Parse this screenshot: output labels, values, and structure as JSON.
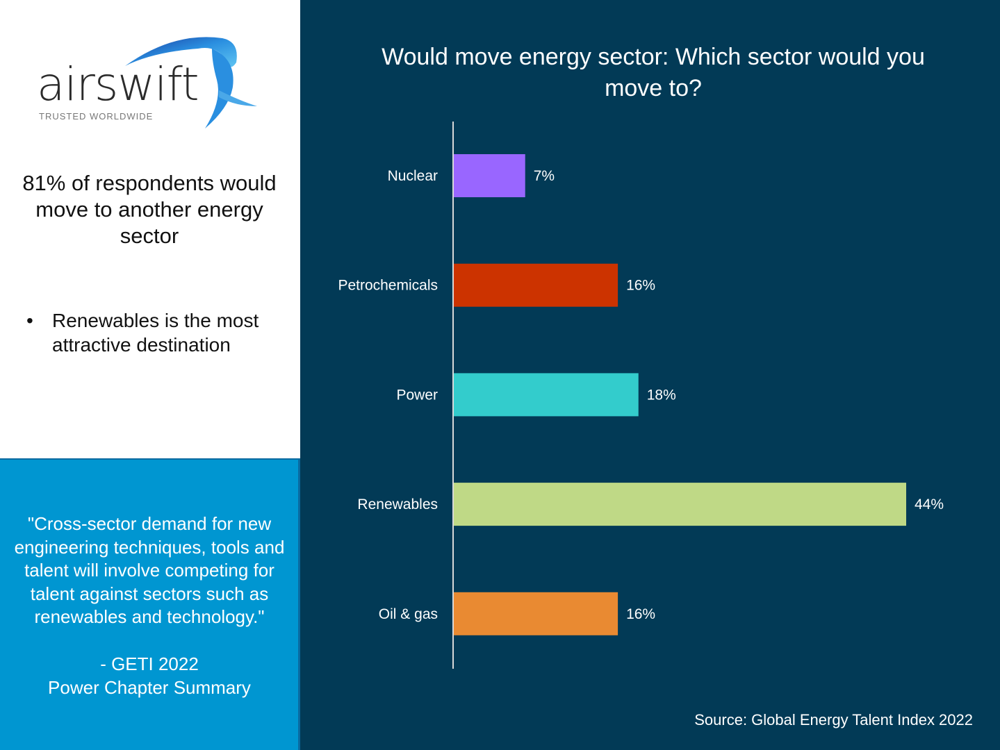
{
  "logo": {
    "wordmark": "airswift",
    "tagline": "TRUSTED WORLDWIDE"
  },
  "headline": "81% of respondents would move to another energy sector",
  "bullet": "Renewables is the most attractive destination",
  "quote": {
    "text": "\"Cross-sector demand for new engineering techniques, tools and talent will involve competing for talent against sectors such as renewables and technology.\"",
    "attribution_line1": "- GETI 2022",
    "attribution_line2": "Power Chapter Summary"
  },
  "source": "Source: Global Energy Talent Index 2022",
  "colors": {
    "background": "#023a56",
    "quote_panel": "#0096d1"
  },
  "chart_data": {
    "type": "bar",
    "orientation": "horizontal",
    "title": "Would move energy sector: Which sector would you move to?",
    "categories": [
      "Nuclear",
      "Petrochemicals",
      "Power",
      "Renewables",
      "Oil & gas"
    ],
    "values": [
      7,
      16,
      18,
      44,
      16
    ],
    "data_labels": [
      "7%",
      "16%",
      "18%",
      "44%",
      "16%"
    ],
    "colors": [
      "#9966ff",
      "#cc3300",
      "#33cccc",
      "#bfd986",
      "#e98a32"
    ],
    "unit": "%",
    "xlim": [
      0,
      44
    ],
    "grid": false,
    "legend": "none"
  }
}
